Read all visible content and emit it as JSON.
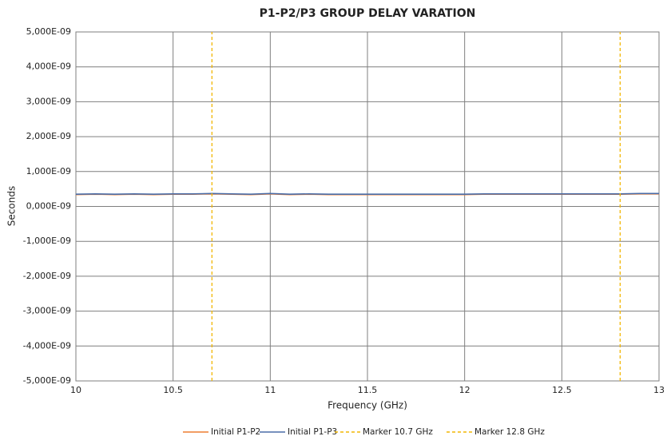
{
  "chart_data": {
    "type": "line",
    "title": "P1-P2/P3 GROUP DELAY VARATION",
    "x_label": "Frequency (GHz)",
    "y_label": "Seconds",
    "xlim": [
      10,
      13
    ],
    "xticks": [
      10,
      10.5,
      11,
      11.5,
      12,
      12.5,
      13
    ],
    "ylim": [
      -5e-06,
      5e-06
    ],
    "yticks": [
      {
        "value": -5e-06,
        "label": "-5,000E-09"
      },
      {
        "value": -4e-06,
        "label": "-4,000E-09"
      },
      {
        "value": -3e-06,
        "label": "-3,000E-09"
      },
      {
        "value": -2e-06,
        "label": "-2,000E-09"
      },
      {
        "value": -1e-06,
        "label": "-1,000E-09"
      },
      {
        "value": 0,
        "label": "0,000E-09"
      },
      {
        "value": 1e-06,
        "label": "1,000E-09"
      },
      {
        "value": 2e-06,
        "label": "2,000E-09"
      },
      {
        "value": 3e-06,
        "label": "3,000E-09"
      },
      {
        "value": 4e-06,
        "label": "4,000E-09"
      },
      {
        "value": 5e-06,
        "label": "5,000E-09"
      }
    ],
    "grid": true,
    "legend": "bottom",
    "series": [
      {
        "name": "Initial P1-P2",
        "color": "#ed7d31",
        "dashed": false,
        "x": [
          10,
          10.1,
          10.2,
          10.3,
          10.4,
          10.5,
          10.6,
          10.7,
          10.8,
          10.9,
          11,
          11.1,
          11.2,
          11.3,
          11.4,
          11.5,
          11.6,
          11.7,
          11.8,
          11.9,
          12,
          12.1,
          12.2,
          12.3,
          12.4,
          12.5,
          12.6,
          12.7,
          12.8,
          12.9,
          13
        ],
        "values": [
          3.4e-07,
          3.5e-07,
          3.4e-07,
          3.5e-07,
          3.4e-07,
          3.5e-07,
          3.5e-07,
          3.6e-07,
          3.5e-07,
          3.4e-07,
          3.6e-07,
          3.4e-07,
          3.5e-07,
          3.4e-07,
          3.4e-07,
          3.4e-07,
          3.4e-07,
          3.4e-07,
          3.4e-07,
          3.4e-07,
          3.4e-07,
          3.5e-07,
          3.5e-07,
          3.5e-07,
          3.5e-07,
          3.5e-07,
          3.5e-07,
          3.5e-07,
          3.5e-07,
          3.6e-07,
          3.6e-07
        ]
      },
      {
        "name": "Initial P1-P3",
        "color": "#4a6da8",
        "dashed": false,
        "x": [
          10,
          10.1,
          10.2,
          10.3,
          10.4,
          10.5,
          10.6,
          10.7,
          10.8,
          10.9,
          11,
          11.1,
          11.2,
          11.3,
          11.4,
          11.5,
          11.6,
          11.7,
          11.8,
          11.9,
          12,
          12.1,
          12.2,
          12.3,
          12.4,
          12.5,
          12.6,
          12.7,
          12.8,
          12.9,
          13
        ],
        "values": [
          3.5e-07,
          3.6e-07,
          3.5e-07,
          3.6e-07,
          3.5e-07,
          3.6e-07,
          3.6e-07,
          3.7e-07,
          3.6e-07,
          3.5e-07,
          3.7e-07,
          3.5e-07,
          3.6e-07,
          3.5e-07,
          3.5e-07,
          3.5e-07,
          3.5e-07,
          3.5e-07,
          3.5e-07,
          3.5e-07,
          3.5e-07,
          3.6e-07,
          3.6e-07,
          3.6e-07,
          3.6e-07,
          3.6e-07,
          3.6e-07,
          3.6e-07,
          3.6e-07,
          3.7e-07,
          3.7e-07
        ]
      },
      {
        "name": "Marker 10.7 GHz",
        "color": "#f2b705",
        "dashed": true,
        "x": [
          10.7,
          10.7
        ],
        "values": [
          -5e-06,
          5e-06
        ]
      },
      {
        "name": "Marker 12.8 GHz",
        "color": "#f2b705",
        "dashed": true,
        "x": [
          12.8,
          12.8
        ],
        "values": [
          -5e-06,
          5e-06
        ]
      }
    ]
  }
}
